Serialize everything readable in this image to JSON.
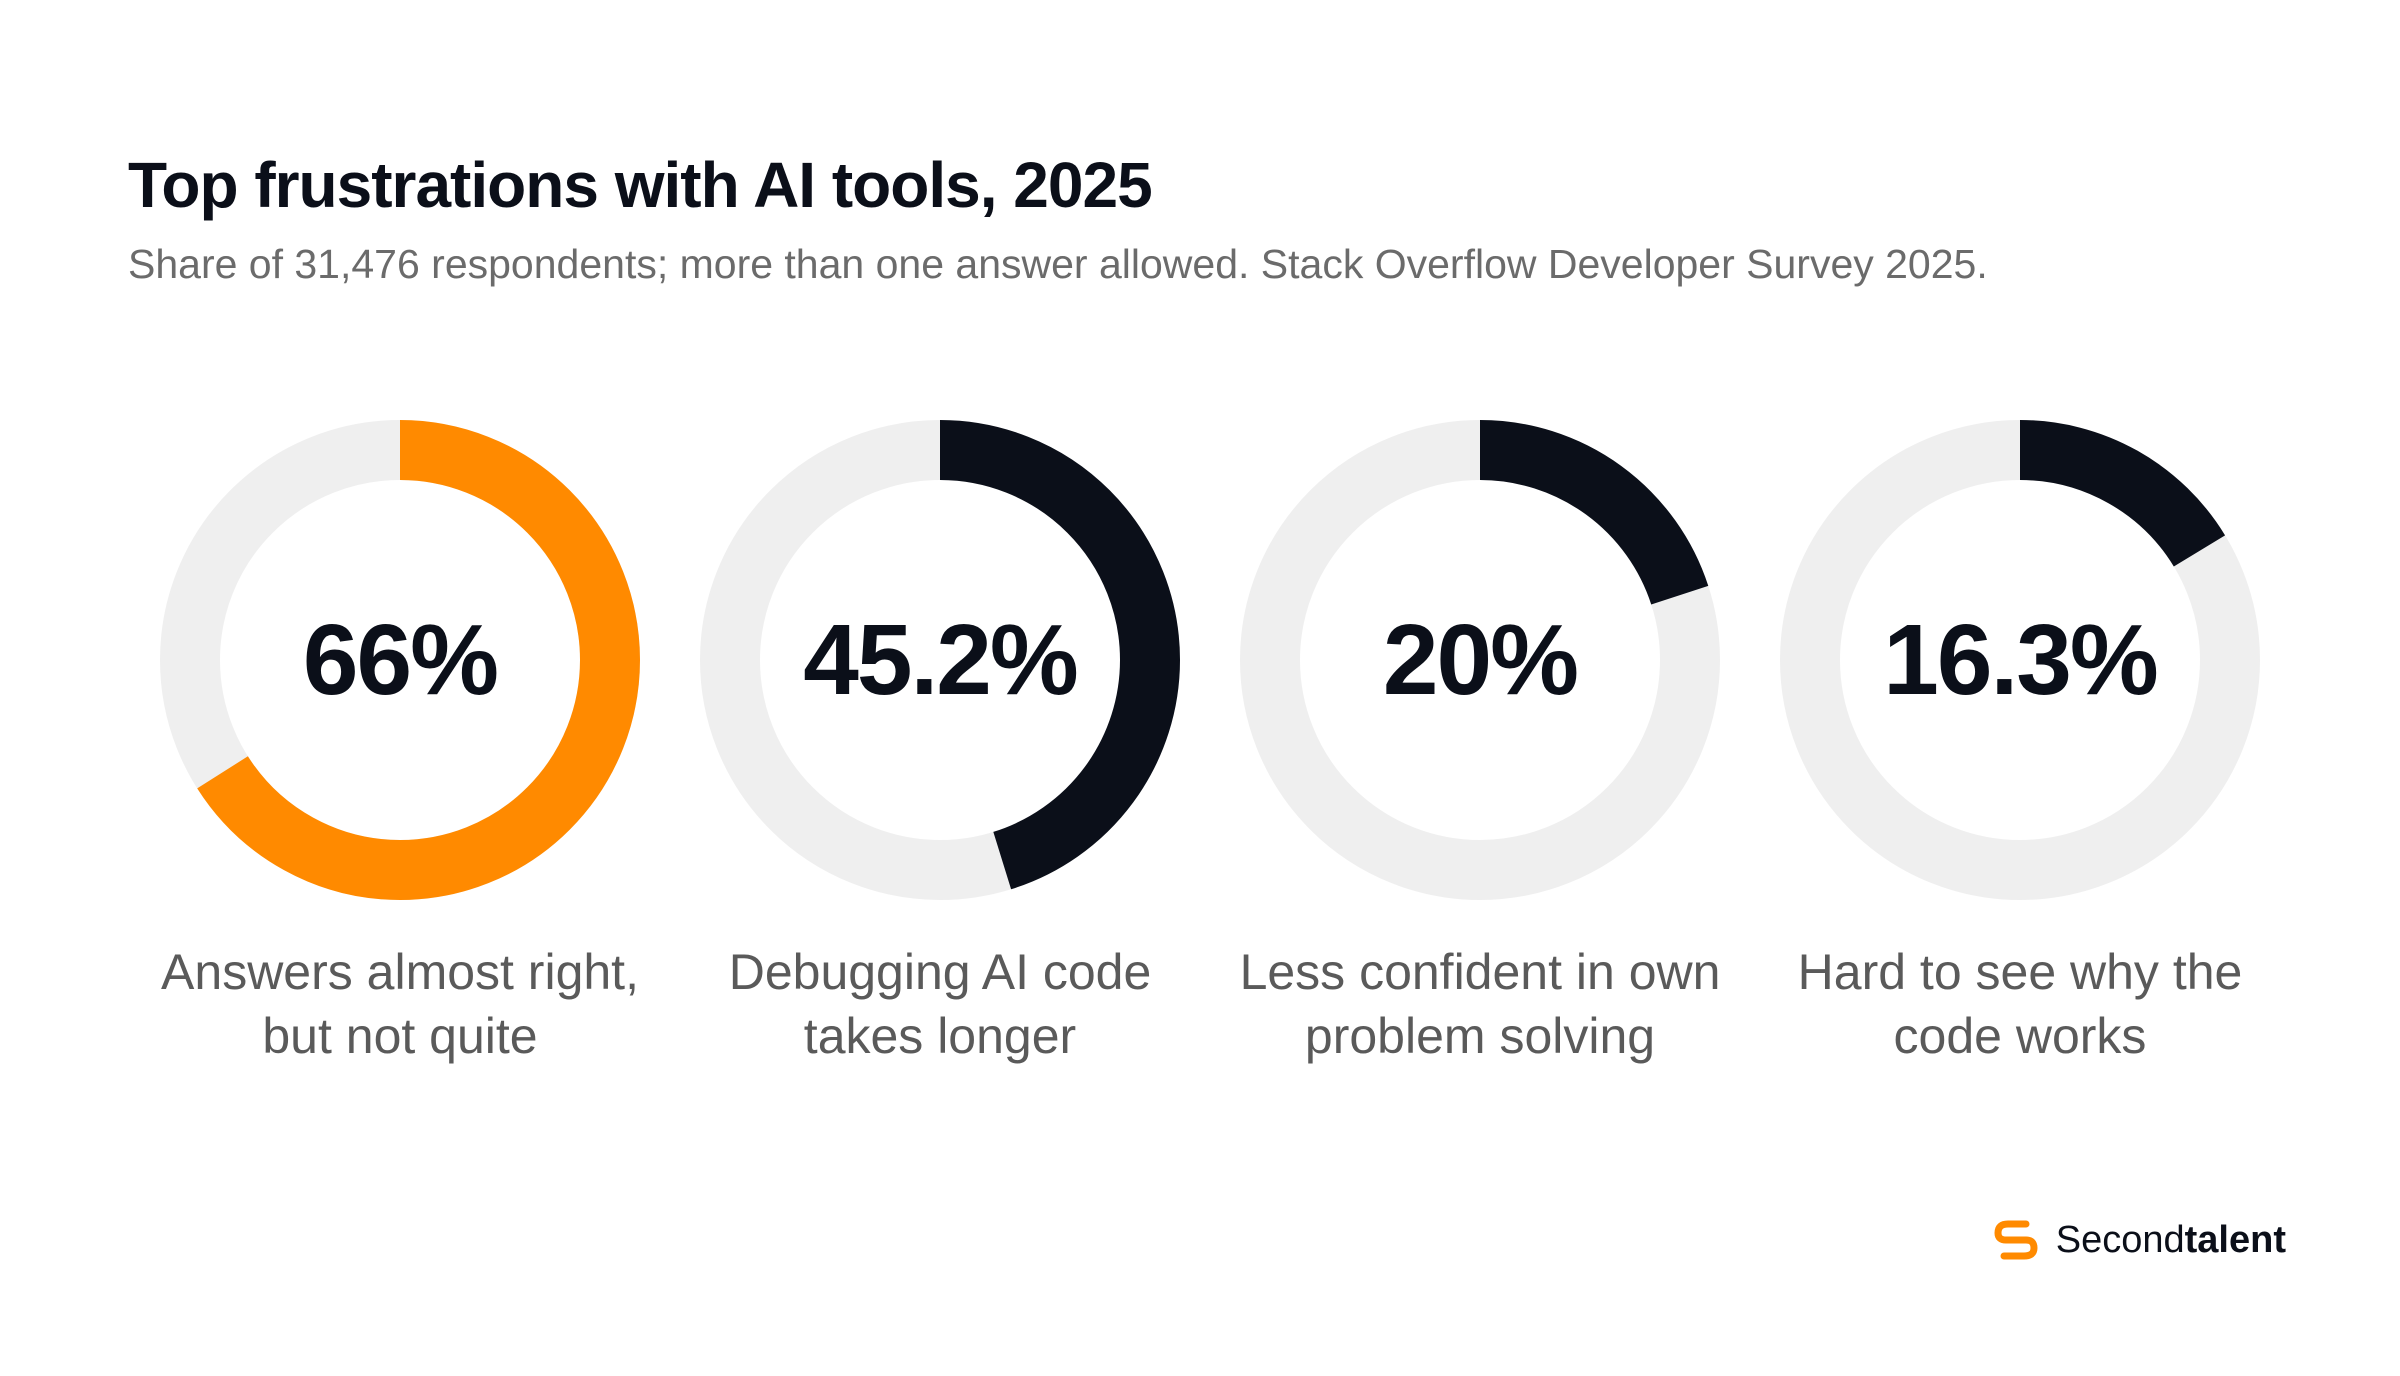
{
  "title": "Top frustrations with AI tools, 2025",
  "subtitle": "Share of 31,476 respondents; more than one answer allowed. Stack Overflow Developer Survey 2025.",
  "chart_data": {
    "type": "pie",
    "subtype": "donut",
    "unit": "%",
    "track_color": "#efefef",
    "items": [
      {
        "label": "Answers almost right, but not quite",
        "value": 66,
        "display": "66%",
        "color": "#ff8a00"
      },
      {
        "label": "Debugging AI code takes longer",
        "value": 45.2,
        "display": "45.2%",
        "color": "#0b0f19"
      },
      {
        "label": "Less confident in own problem solving",
        "value": 20,
        "display": "20%",
        "color": "#0b0f19"
      },
      {
        "label": "Hard to see why the code works",
        "value": 16.3,
        "display": "16.3%",
        "color": "#0b0f19"
      }
    ]
  },
  "brand": {
    "regular": "Second",
    "bold": "talent",
    "icon": "secondtalent-logo-icon",
    "color": "#ff8a00"
  }
}
